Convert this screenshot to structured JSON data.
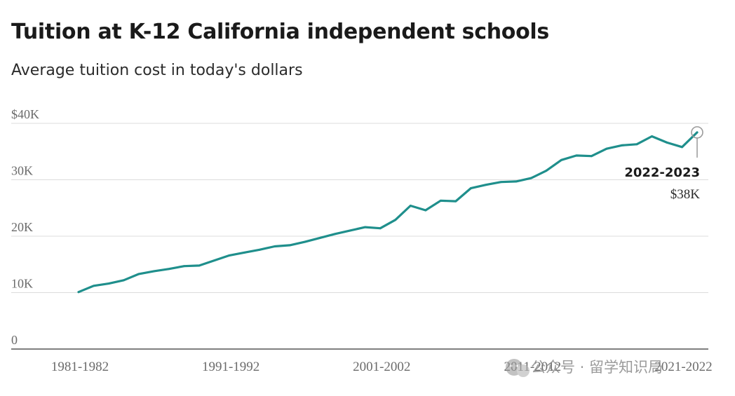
{
  "chart_data": {
    "type": "line",
    "title": "Tuition at K-12 California independent schools",
    "subtitle": "Average tuition cost in today's dollars",
    "x": [
      1981,
      1982,
      1983,
      1984,
      1985,
      1986,
      1987,
      1988,
      1989,
      1990,
      1991,
      1992,
      1993,
      1994,
      1995,
      1996,
      1997,
      1998,
      1999,
      2000,
      2001,
      2002,
      2003,
      2004,
      2005,
      2006,
      2007,
      2008,
      2009,
      2010,
      2011,
      2012,
      2013,
      2014,
      2015,
      2016,
      2017,
      2018,
      2019,
      2020,
      2021,
      2022
    ],
    "series": [
      {
        "color": "#1f8f8c",
        "values": [
          10.1,
          11.2,
          11.6,
          12.2,
          13.3,
          13.8,
          14.2,
          14.7,
          14.8,
          15.7,
          16.6,
          17.1,
          17.6,
          18.2,
          18.4,
          19.0,
          19.7,
          20.4,
          21.0,
          21.6,
          21.4,
          22.9,
          25.4,
          24.6,
          26.3,
          26.2,
          28.5,
          29.1,
          29.6,
          29.7,
          30.3,
          31.6,
          33.5,
          34.3,
          34.2,
          35.5,
          36.1,
          36.3,
          37.7,
          36.6,
          35.8,
          38.4
        ]
      }
    ],
    "xtick_values": [
      1981,
      1991,
      2001,
      2011,
      2021
    ],
    "xtick_labels": [
      "1981-1982",
      "1991-1992",
      "2001-2002",
      "2011-2012",
      "2021-2022"
    ],
    "ytick_values": [
      0,
      10,
      20,
      30,
      40
    ],
    "ytick_labels": [
      "0",
      "10K",
      "20K",
      "30K",
      "$40K"
    ],
    "ylim": [
      0,
      40
    ],
    "xlim": [
      1981,
      2022
    ],
    "grid": true,
    "annotation": {
      "x": 2022,
      "y": 38.4,
      "label": "2022-2023",
      "value": "$38K"
    }
  },
  "watermark": {
    "text": "公众号 · 留学知识局",
    "icon": "wechat-icon"
  }
}
